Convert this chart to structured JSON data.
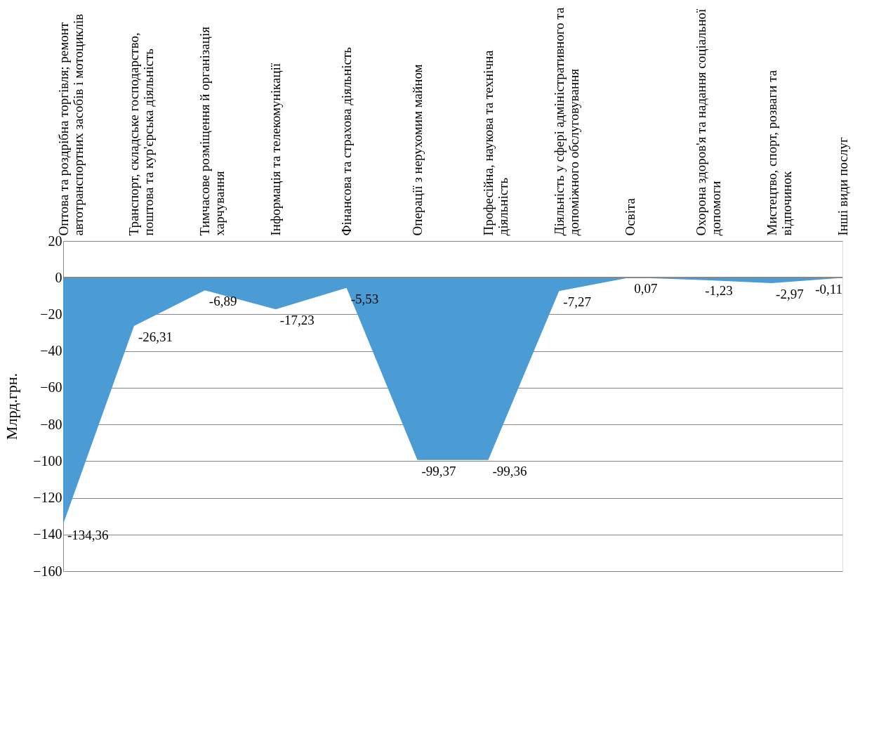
{
  "chart_data": {
    "type": "area",
    "ylabel": "Млрд.грн.",
    "categories": [
      "Оптова та роздрібна  торгівля; ремонт\nавтотранспортних  засобів і мотоциклів",
      "Транспорт, складське господарство,\nпоштова та кур'єрська діяльність",
      "Тимчасове розміщення  й організація\nхарчування",
      "Інформація  та телекомунікації",
      "Фінансова  та страхова діяльність",
      "Операції  з нерухомим  майном",
      "Професійна,  наукова  та технічна\nдіяльність",
      "Діяльність  у сфері адміністративного та\nдопоміжного  обслуговування",
      "Освіта",
      "Охорона  здоров'я та надання соціальної\nдопомоги",
      "Мистецтво, спорт, розваги та\nвідпочинок",
      "Інші види послуг"
    ],
    "values": [
      -134.36,
      -26.31,
      -6.89,
      -17.23,
      -5.53,
      -99.37,
      -99.36,
      -7.27,
      0.07,
      -1.23,
      -2.97,
      -0.11
    ],
    "value_labels": [
      "-134,36",
      "-26,31",
      "-6,89",
      "-17,23",
      "-5,53",
      "-99,37",
      "-99,36",
      "-7,27",
      "0,07",
      "-1,23",
      "-2,97",
      "-0,11"
    ],
    "color": "#4b9bd4",
    "ylim": [
      -160,
      20
    ],
    "yticks": [
      -160,
      -140,
      -120,
      -100,
      -80,
      -60,
      -40,
      -20,
      0,
      20
    ],
    "grid": "y"
  }
}
